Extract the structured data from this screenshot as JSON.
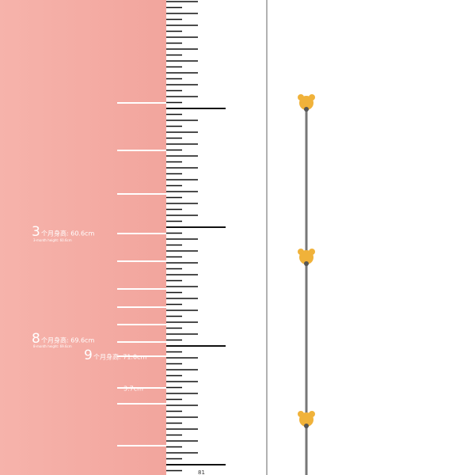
{
  "markers": [
    {
      "month": "3",
      "label": "个月身高: 60.6cm",
      "sub": "3-month height: 60.6cm"
    },
    {
      "month": "8",
      "label": "个月身高: 69.6cm",
      "sub": "8-month height: 69.6cm"
    },
    {
      "month": "9",
      "label": "个月身高: 71.0cm"
    },
    {
      "label": "3.7cm"
    }
  ],
  "ruler": {
    "bottom_label": "81"
  }
}
